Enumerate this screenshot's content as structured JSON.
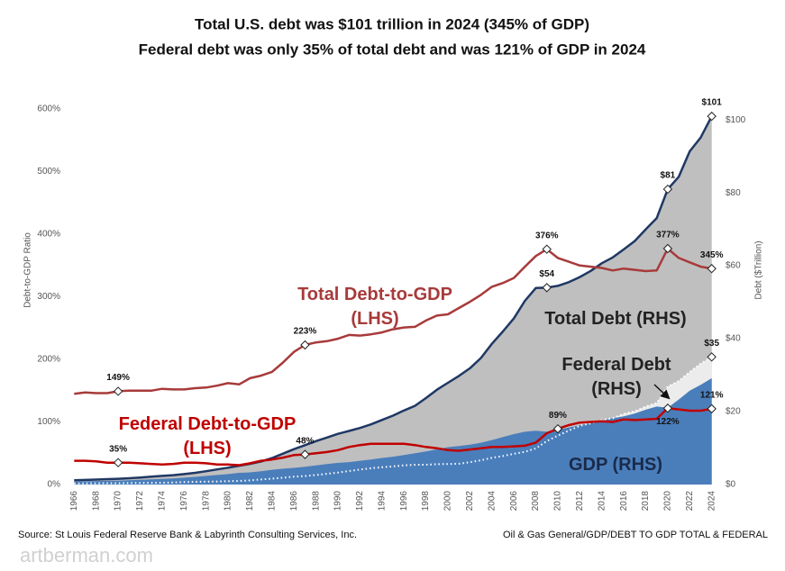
{
  "chart_data": {
    "type": "line",
    "title": "Total U.S. debt was $101 trillion in 2024 (345% of GDP)",
    "subtitle": "Federal debt was only 35% of total debt and was 121% of GDP in 2024",
    "y_label": "Debt-to-GDP Ratio",
    "y2_label": "Debt ($Trillion)",
    "source": "Source: St Louis Federal Reserve Bank & Labyrinth Consulting Services, Inc.",
    "footnote": "Oil & Gas General/GDP/DEBT TO GDP TOTAL & FEDERAL",
    "watermark": "artberman.com",
    "x": [
      1966,
      1967,
      1968,
      1969,
      1970,
      1971,
      1972,
      1973,
      1974,
      1975,
      1976,
      1977,
      1978,
      1979,
      1980,
      1981,
      1982,
      1983,
      1984,
      1985,
      1986,
      1987,
      1988,
      1989,
      1990,
      1991,
      1992,
      1993,
      1994,
      1995,
      1996,
      1997,
      1998,
      1999,
      2000,
      2001,
      2002,
      2003,
      2004,
      2005,
      2006,
      2007,
      2008,
      2009,
      2010,
      2011,
      2012,
      2013,
      2014,
      2015,
      2016,
      2017,
      2018,
      2019,
      2020,
      2021,
      2022,
      2023,
      2024
    ],
    "xlim": [
      1965.4,
      2024.6
    ],
    "xticks": [
      1966,
      1968,
      1970,
      1972,
      1974,
      1976,
      1978,
      1980,
      1982,
      1984,
      1986,
      1988,
      1990,
      1992,
      1994,
      1996,
      1998,
      2000,
      2002,
      2004,
      2006,
      2008,
      2010,
      2012,
      2014,
      2016,
      2018,
      2020,
      2022,
      2024
    ],
    "ylim": [
      0,
      600
    ],
    "yticks": [
      {
        "value": 0,
        "label": "0%"
      },
      {
        "value": 100,
        "label": "100%"
      },
      {
        "value": 200,
        "label": "200%"
      },
      {
        "value": 300,
        "label": "300%"
      },
      {
        "value": 400,
        "label": "400%"
      },
      {
        "value": 500,
        "label": "500%"
      },
      {
        "value": 600,
        "label": "600%"
      }
    ],
    "y2lim": [
      0,
      103
    ],
    "y2ticks": [
      {
        "value": 0,
        "label": "$0"
      },
      {
        "value": 20,
        "label": "$20"
      },
      {
        "value": 40,
        "label": "$40"
      },
      {
        "value": 60,
        "label": "$60"
      },
      {
        "value": 80,
        "label": "$80"
      },
      {
        "value": 100,
        "label": "$100"
      }
    ],
    "series": [
      {
        "name": "Total Debt (RHS)",
        "axis": "y2",
        "mark": "area",
        "color": "#bfbfbf",
        "line_color": "#1f3864",
        "values": [
          1.19,
          1.26,
          1.37,
          1.49,
          1.59,
          1.74,
          1.92,
          2.15,
          2.37,
          2.57,
          2.86,
          3.22,
          3.66,
          4.16,
          4.63,
          5.14,
          5.68,
          6.33,
          7.27,
          8.46,
          9.71,
          10.8,
          11.9,
          12.9,
          13.9,
          14.7,
          15.5,
          16.5,
          17.7,
          18.9,
          20.3,
          21.6,
          23.7,
          26.0,
          27.9,
          29.8,
          31.9,
          34.7,
          38.6,
          42.0,
          45.6,
          50.4,
          53.9,
          54,
          54.5,
          55.5,
          56.9,
          58.6,
          60.7,
          62.3,
          64.5,
          66.8,
          70.0,
          73.1,
          81,
          84.4,
          91.4,
          95.2,
          101
        ],
        "value_labels": [
          null,
          null,
          null,
          null,
          null,
          null,
          null,
          null,
          null,
          null,
          null,
          null,
          null,
          null,
          null,
          null,
          null,
          null,
          null,
          null,
          null,
          null,
          null,
          null,
          null,
          null,
          null,
          null,
          null,
          null,
          null,
          null,
          null,
          null,
          null,
          null,
          null,
          null,
          null,
          null,
          null,
          null,
          null,
          "$54",
          null,
          null,
          null,
          null,
          null,
          null,
          null,
          null,
          null,
          null,
          "$81",
          null,
          null,
          null,
          "$101"
        ]
      },
      {
        "name": "Federal Debt (RHS)",
        "axis": "y2",
        "mark": "area",
        "color": "#ececec",
        "line_color": "#ffffff",
        "dashed": true,
        "values": [
          0.31,
          0.33,
          0.35,
          0.36,
          0.37,
          0.41,
          0.44,
          0.47,
          0.5,
          0.56,
          0.66,
          0.73,
          0.8,
          0.84,
          0.92,
          1.0,
          1.14,
          1.38,
          1.62,
          1.87,
          2.15,
          2.33,
          2.62,
          2.93,
          3.28,
          3.7,
          4.1,
          4.46,
          4.74,
          4.97,
          5.25,
          5.41,
          5.44,
          5.59,
          5.63,
          5.71,
          6.13,
          6.65,
          7.33,
          7.82,
          8.43,
          8.97,
          9.9,
          11.9,
          13.4,
          14.8,
          16.1,
          16.8,
          17.7,
          18.2,
          19.4,
          20.1,
          21.4,
          22.4,
          26.9,
          28.4,
          30.9,
          33.2,
          35
        ],
        "value_labels": [
          null,
          null,
          null,
          null,
          null,
          null,
          null,
          null,
          null,
          null,
          null,
          null,
          null,
          null,
          null,
          null,
          null,
          null,
          null,
          null,
          null,
          null,
          null,
          null,
          null,
          null,
          null,
          null,
          null,
          null,
          null,
          null,
          null,
          null,
          null,
          null,
          null,
          null,
          null,
          null,
          null,
          null,
          null,
          null,
          null,
          null,
          null,
          null,
          null,
          null,
          null,
          null,
          null,
          null,
          null,
          null,
          null,
          null,
          "$35"
        ]
      },
      {
        "name": "GDP (RHS)",
        "axis": "y2",
        "mark": "area",
        "color": "#4a7ebb",
        "values": [
          0.82,
          0.86,
          0.94,
          1.02,
          1.07,
          1.16,
          1.28,
          1.43,
          1.55,
          1.69,
          1.88,
          2.09,
          2.36,
          2.63,
          2.86,
          3.21,
          3.34,
          3.64,
          4.04,
          4.34,
          4.58,
          4.86,
          5.24,
          5.64,
          5.96,
          6.16,
          6.52,
          6.86,
          7.29,
          7.64,
          8.07,
          8.58,
          9.06,
          9.63,
          10.25,
          10.58,
          10.94,
          11.46,
          12.21,
          13.04,
          13.82,
          14.47,
          14.77,
          14.48,
          15.05,
          15.6,
          16.25,
          16.84,
          17.55,
          18.21,
          18.7,
          19.48,
          20.53,
          21.38,
          21.06,
          23.32,
          25.74,
          27.36,
          29.18
        ]
      },
      {
        "name": "Total Debt-to-GDP (LHS)",
        "axis": "y",
        "mark": "line",
        "color": "#a83a3a",
        "values": [
          145,
          147,
          146,
          146,
          149,
          150,
          150,
          150,
          153,
          152,
          152,
          154,
          155,
          158,
          162,
          160,
          170,
          174,
          180,
          195,
          212,
          223,
          227,
          229,
          233,
          239,
          238,
          240,
          243,
          248,
          251,
          252,
          262,
          270,
          272,
          282,
          292,
          303,
          316,
          322,
          330,
          348,
          365,
          376,
          362,
          356,
          350,
          348,
          346,
          342,
          345,
          343,
          341,
          342,
          377,
          362,
          355,
          348,
          345
        ],
        "value_labels": [
          null,
          null,
          null,
          null,
          "149%",
          null,
          null,
          null,
          null,
          null,
          null,
          null,
          null,
          null,
          null,
          null,
          null,
          null,
          null,
          null,
          null,
          "223%",
          null,
          null,
          null,
          null,
          null,
          null,
          null,
          null,
          null,
          null,
          null,
          null,
          null,
          null,
          null,
          null,
          null,
          null,
          null,
          null,
          null,
          "376%",
          null,
          null,
          null,
          null,
          null,
          null,
          null,
          null,
          null,
          null,
          "377%",
          null,
          null,
          null,
          "345%"
        ]
      },
      {
        "name": "Federal Debt-to-GDP (LHS)",
        "axis": "y",
        "mark": "line",
        "color": "#c00000",
        "values": [
          38,
          38,
          37,
          35,
          35,
          35,
          34,
          33,
          32,
          33,
          35,
          35,
          34,
          32,
          32,
          31,
          34,
          38,
          40,
          43,
          47,
          48,
          50,
          52,
          55,
          60,
          63,
          65,
          65,
          65,
          65,
          63,
          60,
          58,
          55,
          54,
          56,
          58,
          60,
          60,
          61,
          62,
          67,
          82,
          89,
          95,
          99,
          100,
          101,
          100,
          104,
          103,
          104,
          105,
          122,
          120,
          118,
          118,
          121
        ],
        "value_labels": [
          null,
          null,
          null,
          null,
          "35%",
          null,
          null,
          null,
          null,
          null,
          null,
          null,
          null,
          null,
          null,
          null,
          null,
          null,
          null,
          null,
          null,
          "48%",
          null,
          null,
          null,
          null,
          null,
          null,
          null,
          null,
          null,
          null,
          null,
          null,
          null,
          null,
          null,
          null,
          null,
          null,
          null,
          null,
          null,
          null,
          "89%",
          null,
          null,
          null,
          null,
          null,
          null,
          null,
          null,
          null,
          "122%",
          null,
          null,
          null,
          "121%"
        ]
      }
    ]
  }
}
